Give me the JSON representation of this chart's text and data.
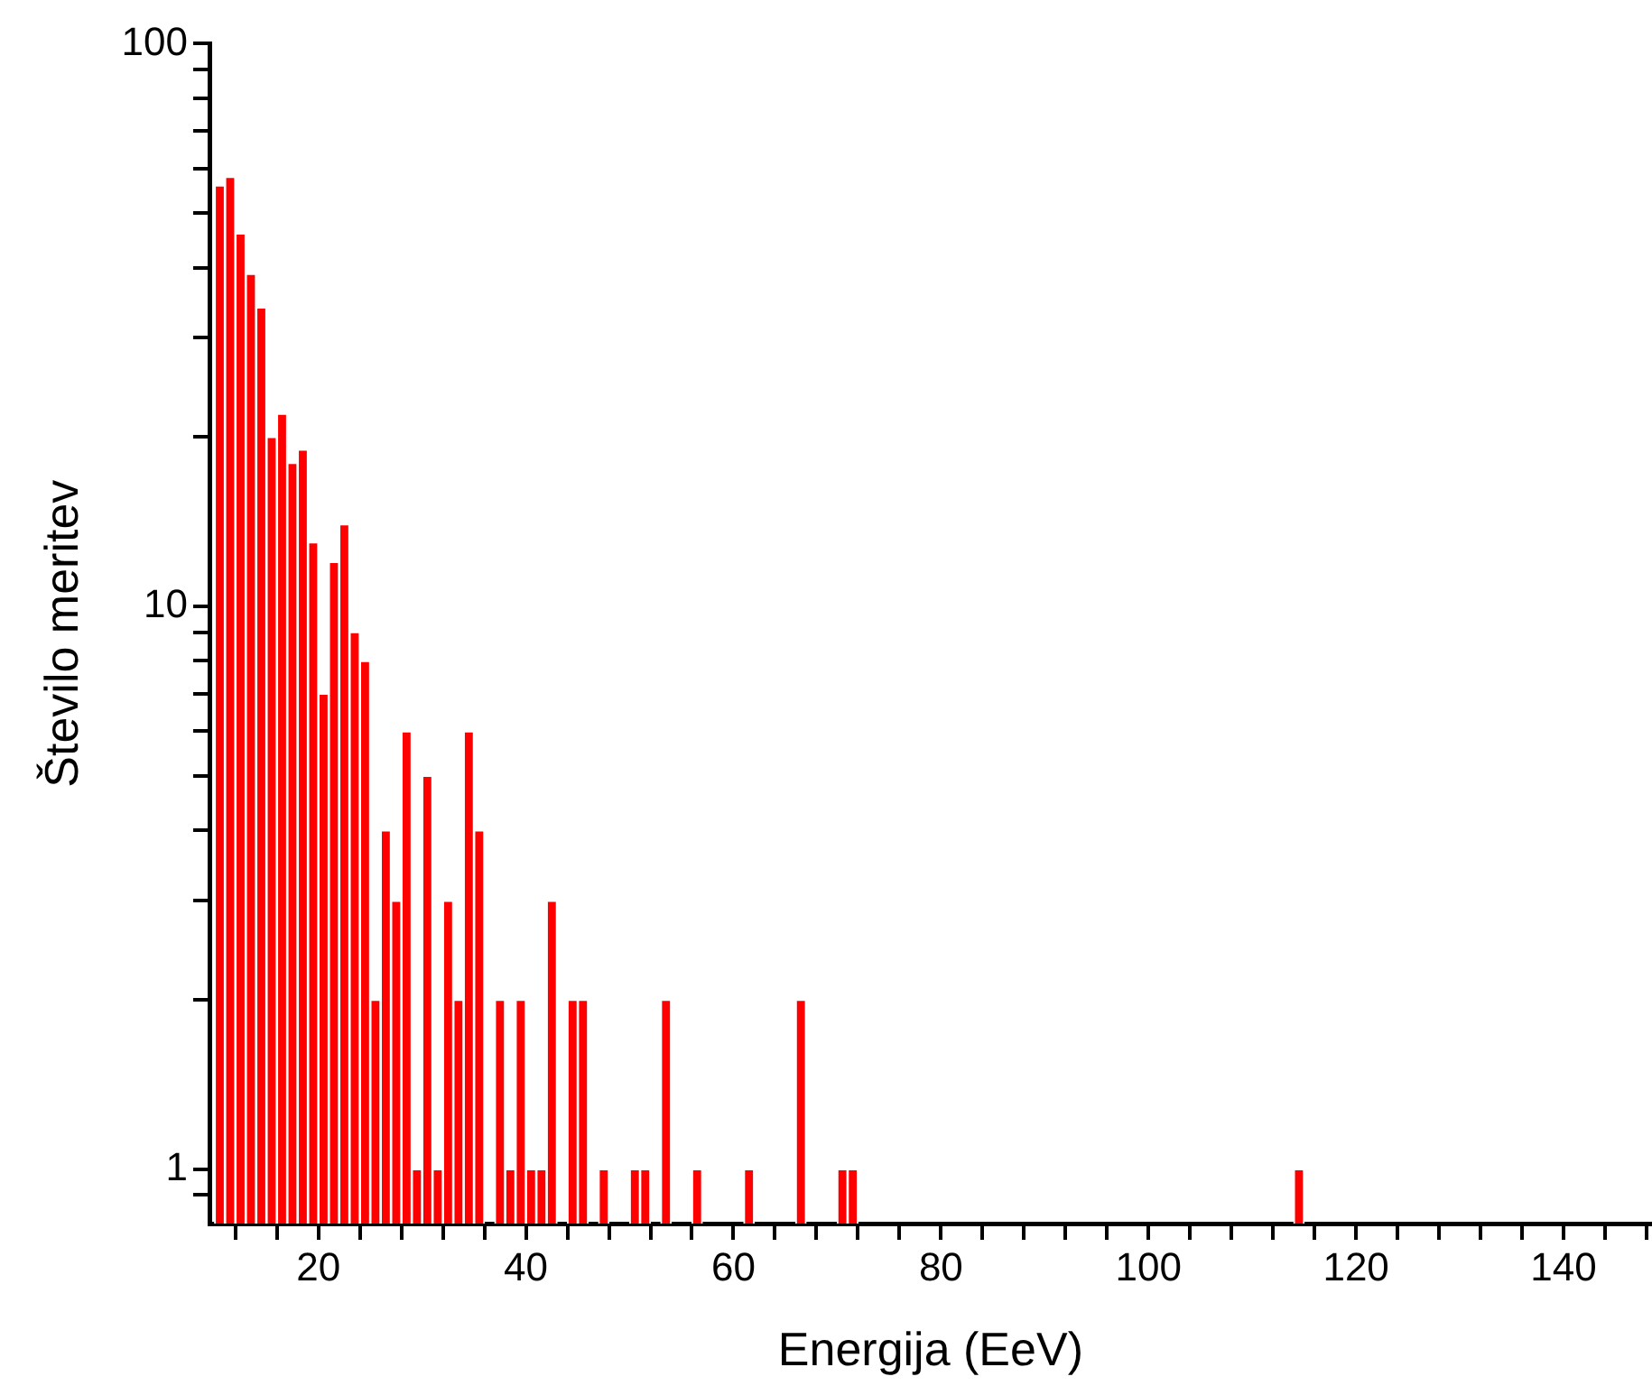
{
  "chart_data": {
    "type": "histogram",
    "xlabel": "Energija (EeV)",
    "ylabel": "Število meritev",
    "bins": [
      10,
      11,
      12,
      13,
      14,
      15,
      16,
      17,
      18,
      19,
      20,
      21,
      22,
      23,
      24,
      25,
      26,
      27,
      28,
      29,
      30,
      31,
      32,
      33,
      34,
      35,
      36,
      37,
      38,
      39,
      40,
      41,
      42,
      43,
      44,
      45,
      46,
      47,
      48,
      49,
      50,
      51,
      52,
      53,
      54,
      55,
      56,
      57,
      58,
      59,
      60,
      61,
      62,
      63,
      64,
      65,
      66,
      67,
      68,
      69,
      70,
      71,
      72,
      73,
      74,
      75,
      76,
      77,
      78,
      79,
      80,
      81,
      82,
      83,
      84,
      85,
      86,
      87,
      88,
      89,
      90,
      91,
      92,
      93,
      94,
      95,
      96,
      97,
      98,
      99,
      100,
      101,
      102,
      103,
      104,
      105,
      106,
      107,
      108,
      109,
      110,
      111,
      112,
      113,
      114,
      115
    ],
    "values": [
      56,
      58,
      46,
      39,
      34,
      20,
      22,
      18,
      19,
      13,
      7,
      12,
      14,
      9,
      8,
      2,
      4,
      3,
      6,
      1,
      5,
      1,
      3,
      2,
      6,
      4,
      null,
      2,
      1,
      2,
      1,
      1,
      3,
      null,
      2,
      2,
      null,
      1,
      null,
      null,
      1,
      1,
      null,
      2,
      null,
      null,
      1,
      null,
      null,
      null,
      null,
      1,
      null,
      null,
      null,
      null,
      2,
      null,
      null,
      null,
      1,
      1,
      null,
      null,
      null,
      null,
      null,
      null,
      null,
      null,
      null,
      null,
      null,
      null,
      null,
      null,
      null,
      null,
      null,
      null,
      null,
      null,
      null,
      null,
      null,
      null,
      null,
      null,
      null,
      null,
      null,
      null,
      null,
      null,
      null,
      null,
      null,
      null,
      null,
      null,
      null,
      null,
      null,
      null,
      1
    ],
    "color": "#ff0000",
    "log": "y",
    "grid": false,
    "xlim": [
      9.5,
      148.5
    ],
    "xticks": [
      {
        "value": 12,
        "label": null
      },
      {
        "value": 16,
        "label": null
      },
      20,
      {
        "value": 24,
        "label": null
      },
      {
        "value": 28,
        "label": null
      },
      {
        "value": 32,
        "label": null
      },
      {
        "value": 36,
        "label": null
      },
      40,
      {
        "value": 44,
        "label": null
      },
      {
        "value": 48,
        "label": null
      },
      {
        "value": 52,
        "label": null
      },
      {
        "value": 56,
        "label": null
      },
      60,
      {
        "value": 64,
        "label": null
      },
      {
        "value": 68,
        "label": null
      },
      {
        "value": 72,
        "label": null
      },
      {
        "value": 76,
        "label": null
      },
      80,
      {
        "value": 84,
        "label": null
      },
      {
        "value": 88,
        "label": null
      },
      {
        "value": 92,
        "label": null
      },
      {
        "value": 96,
        "label": null
      },
      100,
      {
        "value": 104,
        "label": null
      },
      {
        "value": 108,
        "label": null
      },
      {
        "value": 112,
        "label": null
      },
      {
        "value": 116,
        "label": null
      },
      120,
      {
        "value": 124,
        "label": null
      },
      {
        "value": 128,
        "label": null
      },
      {
        "value": 132,
        "label": null
      },
      {
        "value": 136,
        "label": null
      },
      140,
      {
        "value": 144,
        "label": null
      },
      {
        "value": 148,
        "label": null
      }
    ],
    "ylim": [
      0.8,
      100
    ],
    "yticks": [
      {
        "value": 0.9,
        "label": null
      },
      1,
      {
        "value": 2,
        "label": null
      },
      {
        "value": 3,
        "label": null
      },
      {
        "value": 4,
        "label": null
      },
      {
        "value": 5,
        "label": null
      },
      {
        "value": 6,
        "label": null
      },
      {
        "value": 7,
        "label": null
      },
      {
        "value": 8,
        "label": null
      },
      {
        "value": 9,
        "label": null
      },
      10,
      {
        "value": 20,
        "label": null
      },
      {
        "value": 30,
        "label": null
      },
      {
        "value": 40,
        "label": null
      },
      {
        "value": 50,
        "label": null
      },
      {
        "value": 60,
        "label": null
      },
      {
        "value": 70,
        "label": null
      },
      {
        "value": 80,
        "label": null
      },
      {
        "value": 90,
        "label": null
      },
      100
    ]
  }
}
